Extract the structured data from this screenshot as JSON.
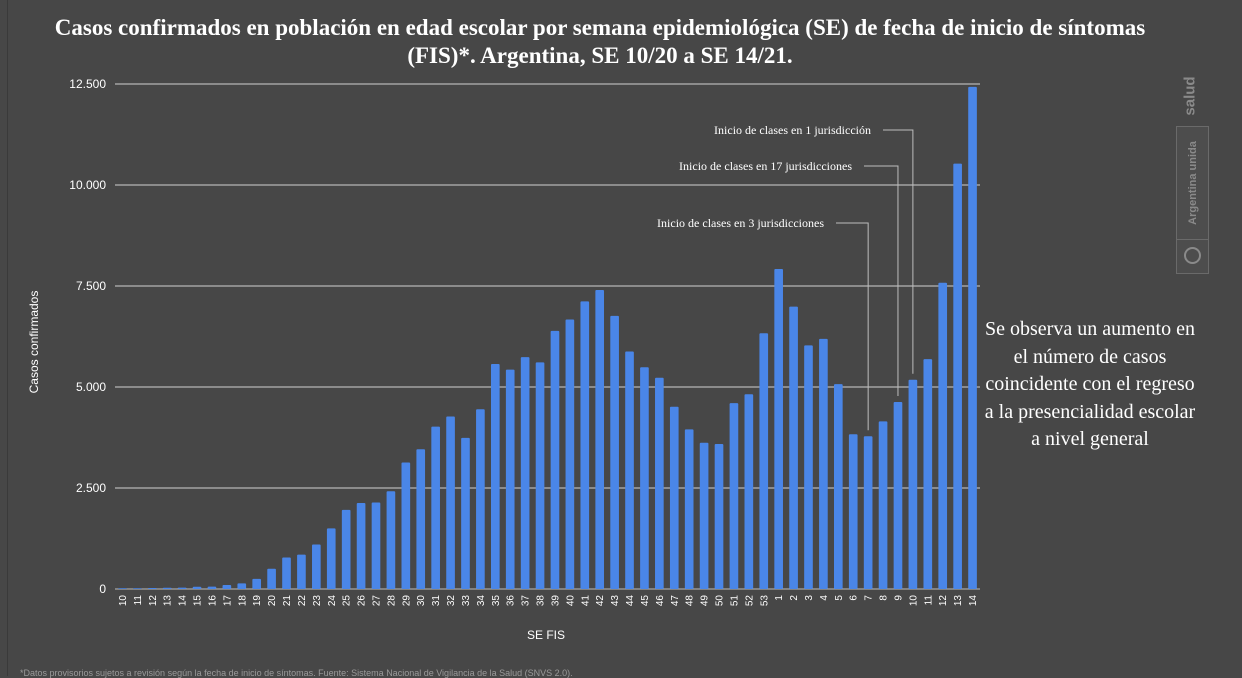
{
  "chart_data": {
    "type": "bar",
    "title": "Casos confirmados en población en edad escolar por semana epidemiológica (SE) de fecha de inicio de síntomas (FIS)*. Argentina, SE 10/20 a SE 14/21.",
    "xlabel": "SE FIS",
    "ylabel": "Casos confirmados",
    "ylim": [
      0,
      12500
    ],
    "yticks": [
      0,
      2500,
      5000,
      7500,
      10000,
      12500
    ],
    "ytick_labels": [
      "0",
      "2.500",
      "5.000",
      "7.500",
      "10.000",
      "12.500"
    ],
    "grid": true,
    "bar_color": "#4a86e8",
    "categories": [
      "10",
      "11",
      "12",
      "13",
      "14",
      "15",
      "16",
      "17",
      "18",
      "19",
      "20",
      "21",
      "22",
      "23",
      "24",
      "25",
      "26",
      "27",
      "28",
      "29",
      "30",
      "31",
      "32",
      "33",
      "34",
      "35",
      "36",
      "37",
      "38",
      "39",
      "40",
      "41",
      "42",
      "43",
      "44",
      "45",
      "46",
      "47",
      "48",
      "49",
      "50",
      "51",
      "52",
      "53",
      "1",
      "2",
      "3",
      "4",
      "5",
      "6",
      "7",
      "8",
      "9",
      "10",
      "11",
      "12",
      "13",
      "14"
    ],
    "values": [
      5,
      10,
      25,
      30,
      35,
      55,
      60,
      100,
      140,
      250,
      500,
      780,
      850,
      1100,
      1500,
      1960,
      2130,
      2140,
      2420,
      3130,
      3460,
      4020,
      4270,
      3740,
      4450,
      5570,
      5430,
      5740,
      5610,
      6390,
      6670,
      7120,
      7400,
      6760,
      5880,
      5490,
      5230,
      4510,
      3950,
      3620,
      3590,
      4600,
      4820,
      6330,
      7920,
      6990,
      6030,
      6190,
      5070,
      3830,
      3780,
      4150,
      4630,
      5180,
      5690,
      7580,
      10530,
      12430
    ],
    "annotations": [
      {
        "text": "Inicio de clases en 3 jurisdicciones",
        "category_index": 50
      },
      {
        "text": "Inicio de clases en 17 jurisdicciones",
        "category_index": 52
      },
      {
        "text": "Inicio de clases en 1 jurisdicción",
        "category_index": 53
      }
    ]
  },
  "side_note": "Se observa un aumento en el número de casos coincidente con el regreso a la presencialidad escolar a nivel general",
  "logo": {
    "salud": "salud",
    "argentina": "Argentina unida"
  },
  "footnote": "*Datos provisorios sujetos a revisión según la fecha de inicio de síntomas. Fuente: Sistema Nacional de Vigilancia de la Salud (SNVS 2.0)."
}
